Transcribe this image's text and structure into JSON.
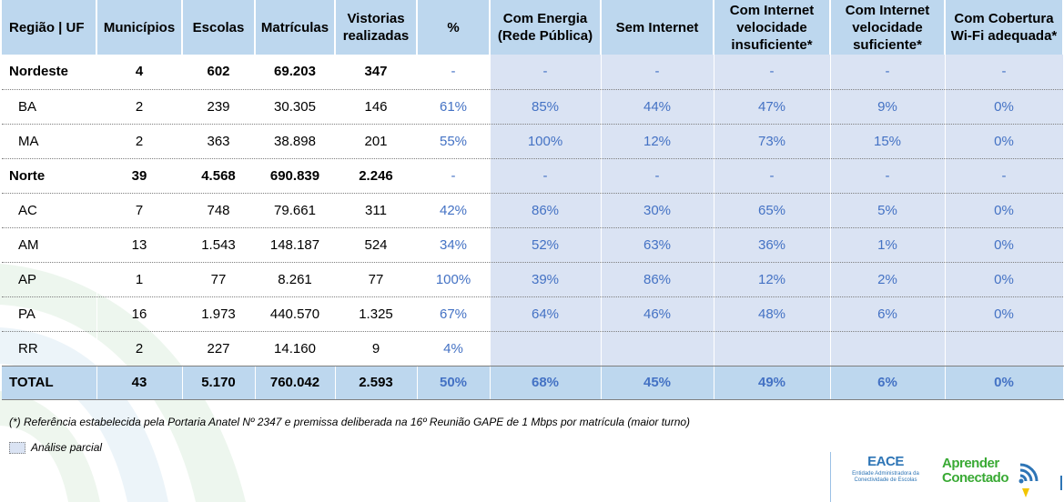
{
  "table": {
    "headers": [
      "Região | UF",
      "Municípios",
      "Escolas",
      "Matrículas",
      "Vistorias realizadas",
      "%",
      "Com Energia (Rede Pública)",
      "Sem Internet",
      "Com Internet velocidade insuficiente*",
      "Com Internet velocidade suficiente*",
      "Com Cobertura Wi-Fi adequada*"
    ],
    "rows": [
      {
        "type": "region",
        "cells": [
          "Nordeste",
          "4",
          "602",
          "69.203",
          "347",
          "-",
          "-",
          "-",
          "-",
          "-",
          "-"
        ]
      },
      {
        "type": "uf",
        "cells": [
          "BA",
          "2",
          "239",
          "30.305",
          "146",
          "61%",
          "85%",
          "44%",
          "47%",
          "9%",
          "0%"
        ]
      },
      {
        "type": "uf",
        "cells": [
          "MA",
          "2",
          "363",
          "38.898",
          "201",
          "55%",
          "100%",
          "12%",
          "73%",
          "15%",
          "0%"
        ]
      },
      {
        "type": "region",
        "cells": [
          "Norte",
          "39",
          "4.568",
          "690.839",
          "2.246",
          "-",
          "-",
          "-",
          "-",
          "-",
          "-"
        ]
      },
      {
        "type": "uf",
        "cells": [
          "AC",
          "7",
          "748",
          "79.661",
          "311",
          "42%",
          "86%",
          "30%",
          "65%",
          "5%",
          "0%"
        ]
      },
      {
        "type": "uf",
        "cells": [
          "AM",
          "13",
          "1.543",
          "148.187",
          "524",
          "34%",
          "52%",
          "63%",
          "36%",
          "1%",
          "0%"
        ]
      },
      {
        "type": "uf",
        "cells": [
          "AP",
          "1",
          "77",
          "8.261",
          "77",
          "100%",
          "39%",
          "86%",
          "12%",
          "2%",
          "0%"
        ]
      },
      {
        "type": "uf",
        "cells": [
          "PA",
          "16",
          "1.973",
          "440.570",
          "1.325",
          "67%",
          "64%",
          "46%",
          "48%",
          "6%",
          "0%"
        ]
      },
      {
        "type": "uf",
        "cells": [
          "RR",
          "2",
          "227",
          "14.160",
          "9",
          "4%",
          "",
          "",
          "",
          "",
          ""
        ]
      }
    ],
    "total": [
      "TOTAL",
      "43",
      "5.170",
      "760.042",
      "2.593",
      "50%",
      "68%",
      "45%",
      "49%",
      "6%",
      "0%"
    ]
  },
  "footnote": "(*) Referência estabelecida pela Portaria Anatel Nº 2347 e premissa deliberada na 16º Reunião GAPE de 1 Mbps por matrícula (maior turno)",
  "legend": {
    "label": "Análise parcial"
  },
  "logos": {
    "eace_name": "EACE",
    "eace_subtitle_1": "Entidade Administradora da",
    "eace_subtitle_2": "Conectividade de Escolas",
    "aprender_line1": "Aprender",
    "aprender_line2": "Conectado"
  },
  "colors": {
    "header_bg": "#bdd7ee",
    "partial_bg": "#dae3f3",
    "pct_text": "#4472c4"
  }
}
